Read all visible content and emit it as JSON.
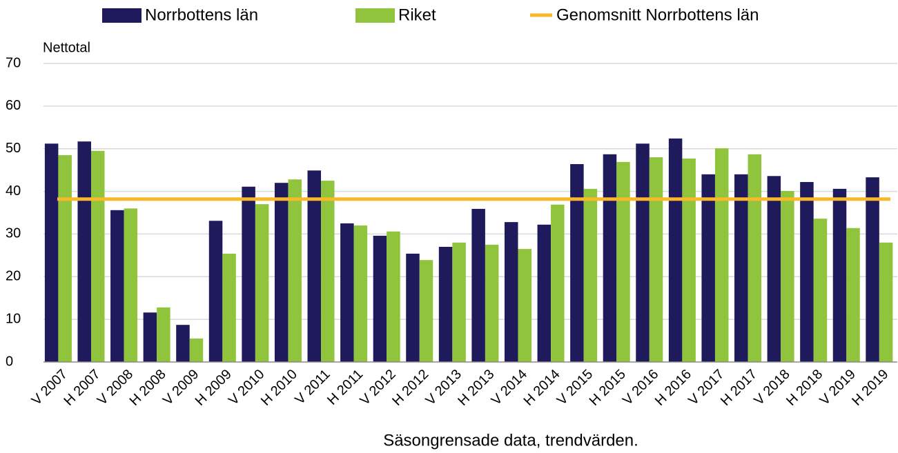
{
  "chart_data": {
    "type": "bar",
    "y_label": "Nettotal",
    "x_label": "Säsongrensade data, trendvärden.",
    "categories": [
      "V 2007",
      "H 2007",
      "V 2008",
      "H 2008",
      "V 2009",
      "H 2009",
      "V 2010",
      "H 2010",
      "V 2011",
      "H 2011",
      "V 2012",
      "H 2012",
      "V 2013",
      "H 2013",
      "V 2014",
      "H 2014",
      "V 2015",
      "H 2015",
      "V 2016",
      "H 2016",
      "V 2017",
      "H 2017",
      "V 2018",
      "H 2018",
      "V 2019",
      "H 2019"
    ],
    "series": [
      {
        "name": "Norrbottens län",
        "color": "#1f1a5c",
        "values": [
          51.2,
          51.7,
          35.6,
          11.6,
          8.7,
          33.1,
          41.1,
          42.0,
          44.9,
          32.5,
          29.6,
          25.4,
          27.0,
          35.9,
          32.8,
          32.2,
          46.4,
          48.7,
          51.2,
          52.4,
          44.0,
          44.0,
          43.6,
          42.2,
          40.6,
          43.3
        ]
      },
      {
        "name": "Riket",
        "color": "#8fc43c",
        "values": [
          48.5,
          49.5,
          36.0,
          12.8,
          5.5,
          25.4,
          37.0,
          42.8,
          42.5,
          32.0,
          30.6,
          23.9,
          28.0,
          27.5,
          26.5,
          36.9,
          40.6,
          46.9,
          48.0,
          47.7,
          50.1,
          48.7,
          40.1,
          33.6,
          31.4,
          28.0
        ]
      }
    ],
    "average": {
      "name": "Genomsnitt Norrbottens län",
      "color": "#f9b82a",
      "value": 38.2
    },
    "ylim": [
      0,
      70
    ],
    "yticks": [
      0,
      10,
      20,
      30,
      40,
      50,
      60,
      70
    ],
    "grid": true
  }
}
